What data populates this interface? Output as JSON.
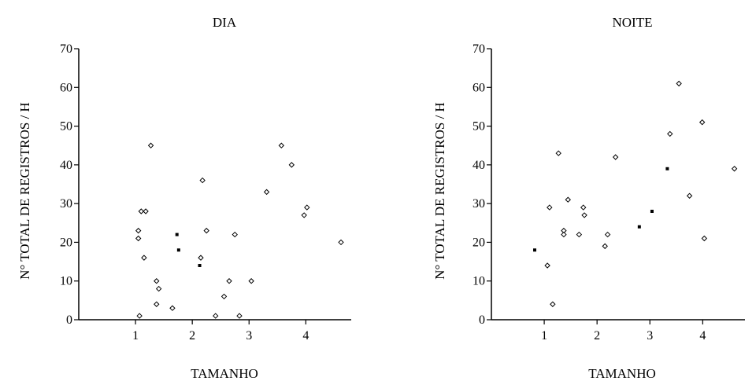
{
  "chart_data": [
    {
      "type": "scatter",
      "title": "DIA",
      "xlabel": "TAMANHO",
      "ylabel": "N° TOTAL DE REGISTROS / H",
      "xlim": [
        0.0,
        4.8
      ],
      "ylim": [
        0,
        70
      ],
      "xticks": [
        1,
        2,
        3,
        4
      ],
      "yticks": [
        0,
        10,
        20,
        30,
        40,
        50,
        60,
        70
      ],
      "grid": false,
      "series": [
        {
          "marker": "open-diamond",
          "points": [
            {
              "x": 1.05,
              "y": 23
            },
            {
              "x": 1.05,
              "y": 21
            },
            {
              "x": 1.07,
              "y": 1
            },
            {
              "x": 1.1,
              "y": 28
            },
            {
              "x": 1.18,
              "y": 28
            },
            {
              "x": 1.15,
              "y": 16
            },
            {
              "x": 1.27,
              "y": 45
            },
            {
              "x": 1.37,
              "y": 10
            },
            {
              "x": 1.41,
              "y": 8
            },
            {
              "x": 1.37,
              "y": 4
            },
            {
              "x": 1.65,
              "y": 3
            },
            {
              "x": 2.15,
              "y": 16
            },
            {
              "x": 2.18,
              "y": 36
            },
            {
              "x": 2.25,
              "y": 23
            },
            {
              "x": 2.41,
              "y": 1
            },
            {
              "x": 2.56,
              "y": 6
            },
            {
              "x": 2.65,
              "y": 10
            },
            {
              "x": 2.75,
              "y": 22
            },
            {
              "x": 2.83,
              "y": 1
            },
            {
              "x": 3.04,
              "y": 10
            },
            {
              "x": 3.31,
              "y": 33
            },
            {
              "x": 3.57,
              "y": 45
            },
            {
              "x": 3.75,
              "y": 40
            },
            {
              "x": 3.97,
              "y": 27
            },
            {
              "x": 4.02,
              "y": 29
            },
            {
              "x": 4.62,
              "y": 20
            }
          ]
        },
        {
          "marker": "filled-square",
          "points": [
            {
              "x": 1.73,
              "y": 22
            },
            {
              "x": 1.76,
              "y": 18
            },
            {
              "x": 2.13,
              "y": 14
            }
          ]
        }
      ]
    },
    {
      "type": "scatter",
      "title": "NOITE",
      "xlabel": "TAMANHO",
      "ylabel": "N° TOTAL DE REGISTROS / H",
      "xlim": [
        0.0,
        4.8
      ],
      "ylim": [
        0,
        70
      ],
      "xticks": [
        1,
        2,
        3,
        4
      ],
      "yticks": [
        0,
        10,
        20,
        30,
        40,
        50,
        60,
        70
      ],
      "grid": false,
      "series": [
        {
          "marker": "open-diamond",
          "points": [
            {
              "x": 1.1,
              "y": 29
            },
            {
              "x": 1.06,
              "y": 14
            },
            {
              "x": 1.16,
              "y": 4
            },
            {
              "x": 1.27,
              "y": 43
            },
            {
              "x": 1.37,
              "y": 23
            },
            {
              "x": 1.37,
              "y": 22
            },
            {
              "x": 1.45,
              "y": 31
            },
            {
              "x": 1.66,
              "y": 22
            },
            {
              "x": 1.74,
              "y": 29
            },
            {
              "x": 1.76,
              "y": 27
            },
            {
              "x": 2.15,
              "y": 19
            },
            {
              "x": 2.2,
              "y": 22
            },
            {
              "x": 2.35,
              "y": 42
            },
            {
              "x": 3.38,
              "y": 48
            },
            {
              "x": 3.55,
              "y": 61
            },
            {
              "x": 3.75,
              "y": 32
            },
            {
              "x": 3.99,
              "y": 51
            },
            {
              "x": 4.03,
              "y": 21
            },
            {
              "x": 4.6,
              "y": 39
            }
          ]
        },
        {
          "marker": "filled-square",
          "points": [
            {
              "x": 0.82,
              "y": 18
            },
            {
              "x": 2.8,
              "y": 24
            },
            {
              "x": 3.04,
              "y": 28
            },
            {
              "x": 3.33,
              "y": 39
            }
          ]
        }
      ]
    }
  ]
}
